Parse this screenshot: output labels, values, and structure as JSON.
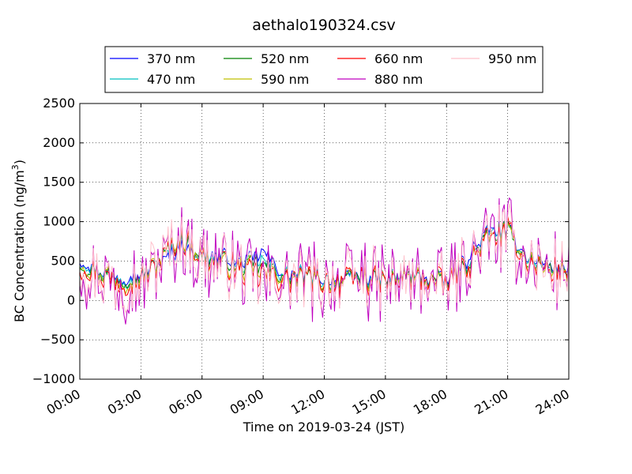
{
  "chart_data": {
    "type": "line",
    "title": "aethalo190324.csv",
    "xlabel": "Time on 2019-03-24 (JST)",
    "ylabel": "BC Concentration (ng/m³)",
    "ylabel_main": "BC Concentration (ng/m",
    "ylabel_sup": "3",
    "ylabel_tail": ")",
    "xlim": [
      0,
      24
    ],
    "ylim": [
      -1000,
      2500
    ],
    "xticks": [
      0,
      3,
      6,
      9,
      12,
      15,
      18,
      21,
      24
    ],
    "xtick_labels": [
      "00:00",
      "03:00",
      "06:00",
      "09:00",
      "12:00",
      "15:00",
      "18:00",
      "21:00",
      "24:00"
    ],
    "yticks": [
      -1000,
      -500,
      0,
      500,
      1000,
      1500,
      2000,
      2500
    ],
    "ytick_labels": [
      "−1000",
      "−500",
      "0",
      "500",
      "1000",
      "1500",
      "2000",
      "2500"
    ],
    "grid": true,
    "legend_position": "top-center",
    "series": [
      {
        "name": "370 nm",
        "color": "#0000ff",
        "amp": 0.3,
        "offset": 0,
        "seed": 11,
        "x": [
          0,
          1,
          2,
          3,
          4,
          5,
          6,
          7,
          8,
          9,
          10,
          11,
          12,
          13,
          14,
          15,
          16,
          17,
          18,
          19,
          20,
          21,
          22,
          23,
          24
        ],
        "values": [
          530,
          380,
          300,
          330,
          480,
          700,
          560,
          560,
          480,
          610,
          340,
          330,
          270,
          270,
          310,
          260,
          330,
          300,
          240,
          520,
          880,
          900,
          540,
          450,
          400
        ]
      },
      {
        "name": "470 nm",
        "color": "#00bfbf",
        "amp": 0.34,
        "offset": 0,
        "seed": 23,
        "x": [
          0,
          1,
          2,
          3,
          4,
          5,
          6,
          7,
          8,
          9,
          10,
          11,
          12,
          13,
          14,
          15,
          16,
          17,
          18,
          19,
          20,
          21,
          22,
          23,
          24
        ],
        "values": [
          500,
          370,
          280,
          300,
          520,
          760,
          570,
          540,
          440,
          520,
          320,
          320,
          270,
          260,
          310,
          250,
          320,
          290,
          230,
          480,
          840,
          880,
          520,
          430,
          390
        ]
      },
      {
        "name": "520 nm",
        "color": "#008000",
        "amp": 0.38,
        "offset": 0,
        "seed": 37,
        "x": [
          0,
          1,
          2,
          3,
          4,
          5,
          6,
          7,
          8,
          9,
          10,
          11,
          12,
          13,
          14,
          15,
          16,
          17,
          18,
          19,
          20,
          21,
          22,
          23,
          24
        ],
        "values": [
          490,
          360,
          270,
          290,
          540,
          790,
          560,
          520,
          420,
          450,
          300,
          300,
          260,
          250,
          300,
          240,
          310,
          280,
          220,
          460,
          810,
          870,
          510,
          420,
          380
        ]
      },
      {
        "name": "590 nm",
        "color": "#bfbf00",
        "amp": 0.45,
        "offset": 0,
        "seed": 41,
        "x": [
          0,
          1,
          2,
          3,
          4,
          5,
          6,
          7,
          8,
          9,
          10,
          11,
          12,
          13,
          14,
          15,
          16,
          17,
          18,
          19,
          20,
          21,
          22,
          23,
          24
        ],
        "values": [
          480,
          350,
          260,
          280,
          540,
          800,
          550,
          500,
          400,
          380,
          290,
          290,
          250,
          250,
          290,
          230,
          300,
          270,
          220,
          450,
          790,
          860,
          500,
          410,
          370
        ]
      },
      {
        "name": "660 nm",
        "color": "#ff0000",
        "amp": 0.55,
        "offset": 0,
        "seed": 53,
        "x": [
          0,
          1,
          2,
          3,
          4,
          5,
          6,
          7,
          8,
          9,
          10,
          11,
          12,
          13,
          14,
          15,
          16,
          17,
          18,
          19,
          20,
          21,
          22,
          23,
          24
        ],
        "values": [
          470,
          340,
          250,
          270,
          540,
          800,
          540,
          480,
          380,
          320,
          280,
          280,
          240,
          240,
          280,
          220,
          290,
          260,
          210,
          440,
          770,
          850,
          490,
          400,
          360
        ]
      },
      {
        "name": "880 nm",
        "color": "#bf00bf",
        "amp": 1.35,
        "offset": 0,
        "seed": 67,
        "x": [
          0,
          1,
          2,
          3,
          4,
          5,
          6,
          7,
          8,
          9,
          10,
          11,
          12,
          13,
          14,
          15,
          16,
          17,
          18,
          19,
          20,
          21,
          22,
          23,
          24
        ],
        "values": [
          460,
          330,
          240,
          260,
          560,
          820,
          520,
          460,
          360,
          200,
          270,
          280,
          230,
          230,
          280,
          220,
          280,
          250,
          210,
          430,
          760,
          850,
          480,
          390,
          350
        ]
      },
      {
        "name": "950 nm",
        "color": "#ffc0cb",
        "amp": 1.1,
        "offset": 0,
        "seed": 79,
        "x": [
          0,
          1,
          2,
          3,
          4,
          5,
          6,
          7,
          8,
          9,
          10,
          11,
          12,
          13,
          14,
          15,
          16,
          17,
          18,
          19,
          20,
          21,
          22,
          23,
          24
        ],
        "values": [
          460,
          330,
          240,
          260,
          560,
          820,
          520,
          460,
          360,
          250,
          270,
          280,
          230,
          230,
          280,
          220,
          280,
          250,
          210,
          430,
          760,
          850,
          480,
          390,
          350
        ]
      }
    ]
  }
}
